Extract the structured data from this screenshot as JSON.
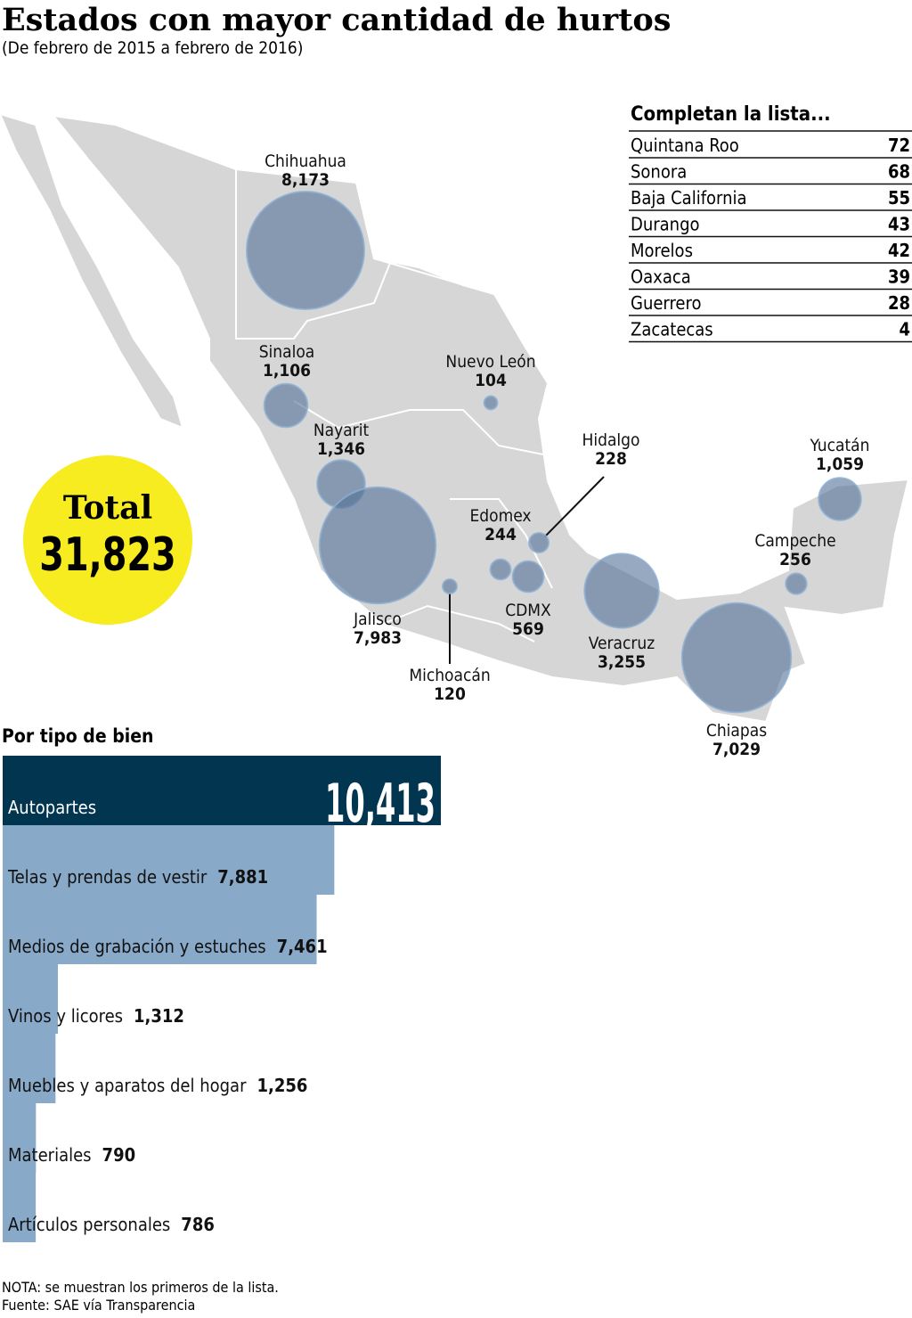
{
  "title": "Estados con mayor cantidad de hurtos",
  "subtitle": "(De febrero de 2015 a febrero de 2016)",
  "total": {
    "label": "Total",
    "value": "31,823"
  },
  "map": {
    "names": [
      "Chihuahua",
      "Sinaloa",
      "Nayarit",
      "Jalisco",
      "Nuevo León",
      "Hidalgo",
      "Edomex",
      "CDMX",
      "Michoacán",
      "Veracruz",
      "Chiapas",
      "Campeche",
      "Yucatán"
    ],
    "values": [
      8173,
      1106,
      1346,
      7983,
      104,
      228,
      244,
      569,
      120,
      3255,
      7029,
      256,
      1059
    ],
    "value_labels": [
      "8,173",
      "1,106",
      "1,346",
      "7,983",
      "104",
      "228",
      "244",
      "569",
      "120",
      "3,255",
      "7,029",
      "256",
      "1,059"
    ]
  },
  "list": {
    "title": "Completan la lista...",
    "rows": [
      [
        "Quintana Roo",
        "72"
      ],
      [
        "Sonora",
        "68"
      ],
      [
        "Baja California",
        "55"
      ],
      [
        "Durango",
        "43"
      ],
      [
        "Morelos",
        "42"
      ],
      [
        "Oaxaca",
        "39"
      ],
      [
        "Guerrero",
        "28"
      ],
      [
        "Zacatecas",
        "4"
      ]
    ]
  },
  "chart_data": {
    "type": "bar",
    "title": "Por tipo de bien",
    "categories": [
      "Autopartes",
      "Telas y prendas de vestir",
      "Medios de grabación y estuches",
      "Vinos y licores",
      "Muebles y aparatos del hogar",
      "Materiales",
      "Artículos personales"
    ],
    "values": [
      10413,
      7881,
      7461,
      1312,
      1256,
      790,
      786
    ],
    "value_labels": [
      "10,413",
      "7,881",
      "7,461",
      "1,312",
      "1,256",
      "790",
      "786"
    ],
    "colors": [
      "#023550",
      "#88a9c8"
    ]
  },
  "notes": [
    "NOTA: se muestran los primeros de la lista.",
    "Fuente: SAE vía Transparencia"
  ]
}
